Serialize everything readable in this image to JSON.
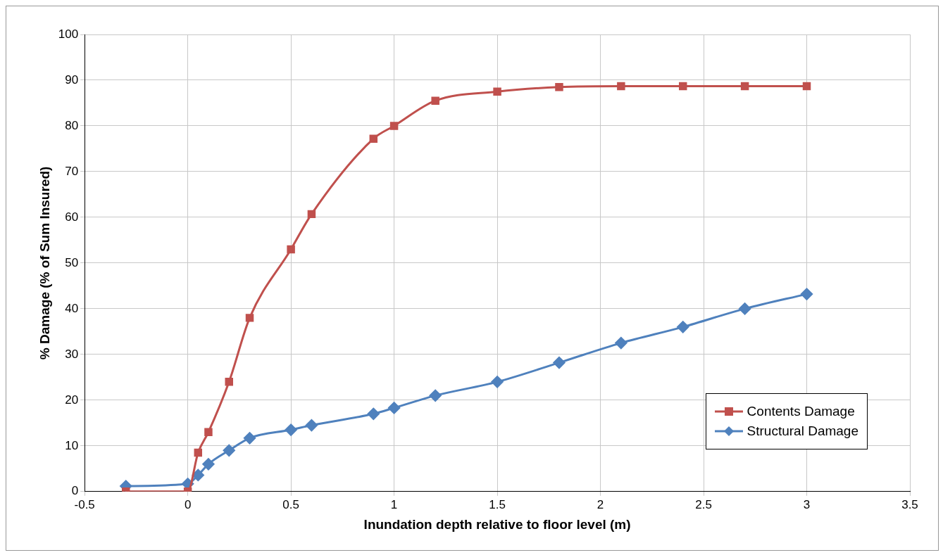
{
  "chart_data": {
    "type": "line",
    "xlabel": "Inundation depth relative to floor level (m)",
    "ylabel": "% Damage (% of Sum Insured)",
    "xlim": [
      -0.5,
      3.5
    ],
    "xticks": [
      -0.5,
      0,
      0.5,
      1,
      1.5,
      2,
      2.5,
      3,
      3.5
    ],
    "ylim": [
      0,
      100
    ],
    "yticks": [
      0,
      10,
      20,
      30,
      40,
      50,
      60,
      70,
      80,
      90,
      100
    ],
    "grid": true,
    "legend": "bottom right",
    "series": [
      {
        "name": "Contents Damage",
        "color": "#c0504d",
        "marker": "square",
        "x": [
          -0.3,
          0,
          0.05,
          0.1,
          0.2,
          0.3,
          0.5,
          0.6,
          0.9,
          1.0,
          1.2,
          1.5,
          1.8,
          2.1,
          2.4,
          2.7,
          3.0
        ],
        "values": [
          0,
          0,
          8.5,
          13,
          24,
          38,
          53,
          60.7,
          77.2,
          80,
          85.5,
          87.5,
          88.5,
          88.7,
          88.7,
          88.7,
          88.7
        ]
      },
      {
        "name": "Structural Damage",
        "color": "#4f81bd",
        "marker": "diamond",
        "x": [
          -0.3,
          0,
          0.05,
          0.1,
          0.2,
          0.3,
          0.5,
          0.6,
          0.9,
          1.0,
          1.2,
          1.5,
          1.8,
          2.1,
          2.4,
          2.7,
          3.0
        ],
        "values": [
          1.2,
          1.7,
          3.6,
          6,
          9,
          11.7,
          13.5,
          14.5,
          17,
          18.3,
          21,
          24,
          28.2,
          32.5,
          36,
          40,
          43.2
        ]
      }
    ]
  }
}
